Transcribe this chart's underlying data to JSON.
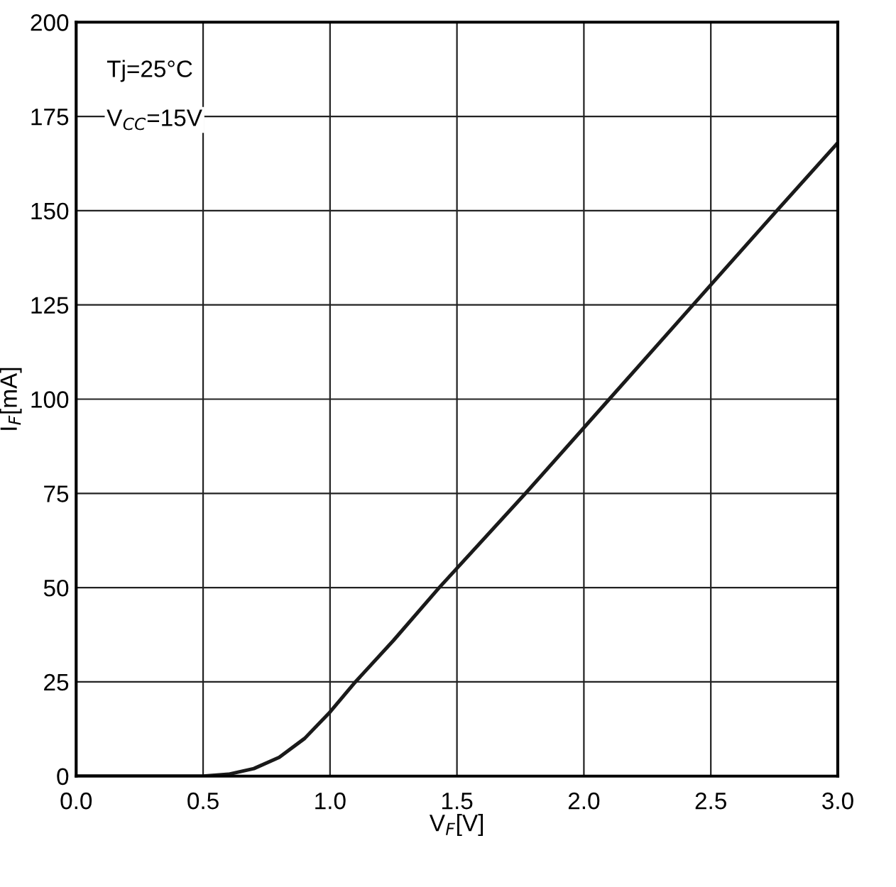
{
  "chart_data": {
    "type": "line",
    "xlabel": "V$_{F}$[V]",
    "ylabel": "I$_{F}$[mA]",
    "annotations": [
      "Tj=25°C",
      "V$_{CC}$=15V"
    ],
    "x": [
      0.0,
      0.5,
      0.6,
      0.7,
      0.8,
      0.9,
      1.0,
      1.1,
      1.25,
      1.43,
      1.77,
      2.1,
      2.43,
      2.76,
      3.0
    ],
    "series": [
      {
        "color": "#1a1a1a",
        "values": [
          0,
          0,
          0.5,
          2,
          5,
          10,
          17,
          25,
          36,
          50,
          75,
          100,
          125,
          150,
          168
        ]
      }
    ],
    "xlim": [
      0,
      3
    ],
    "ylim": [
      0,
      200
    ],
    "xticks": [
      {
        "value": 0,
        "label": "0.0"
      },
      0.5,
      {
        "value": 1,
        "label": "1.0"
      },
      1.5,
      {
        "value": 2,
        "label": "2.0"
      },
      2.5,
      {
        "value": 3,
        "label": "3.0"
      }
    ],
    "yticks": [
      0,
      25,
      50,
      75,
      100,
      125,
      150,
      175,
      200
    ],
    "grid": true,
    "marker": "none",
    "line_style": "solid"
  }
}
